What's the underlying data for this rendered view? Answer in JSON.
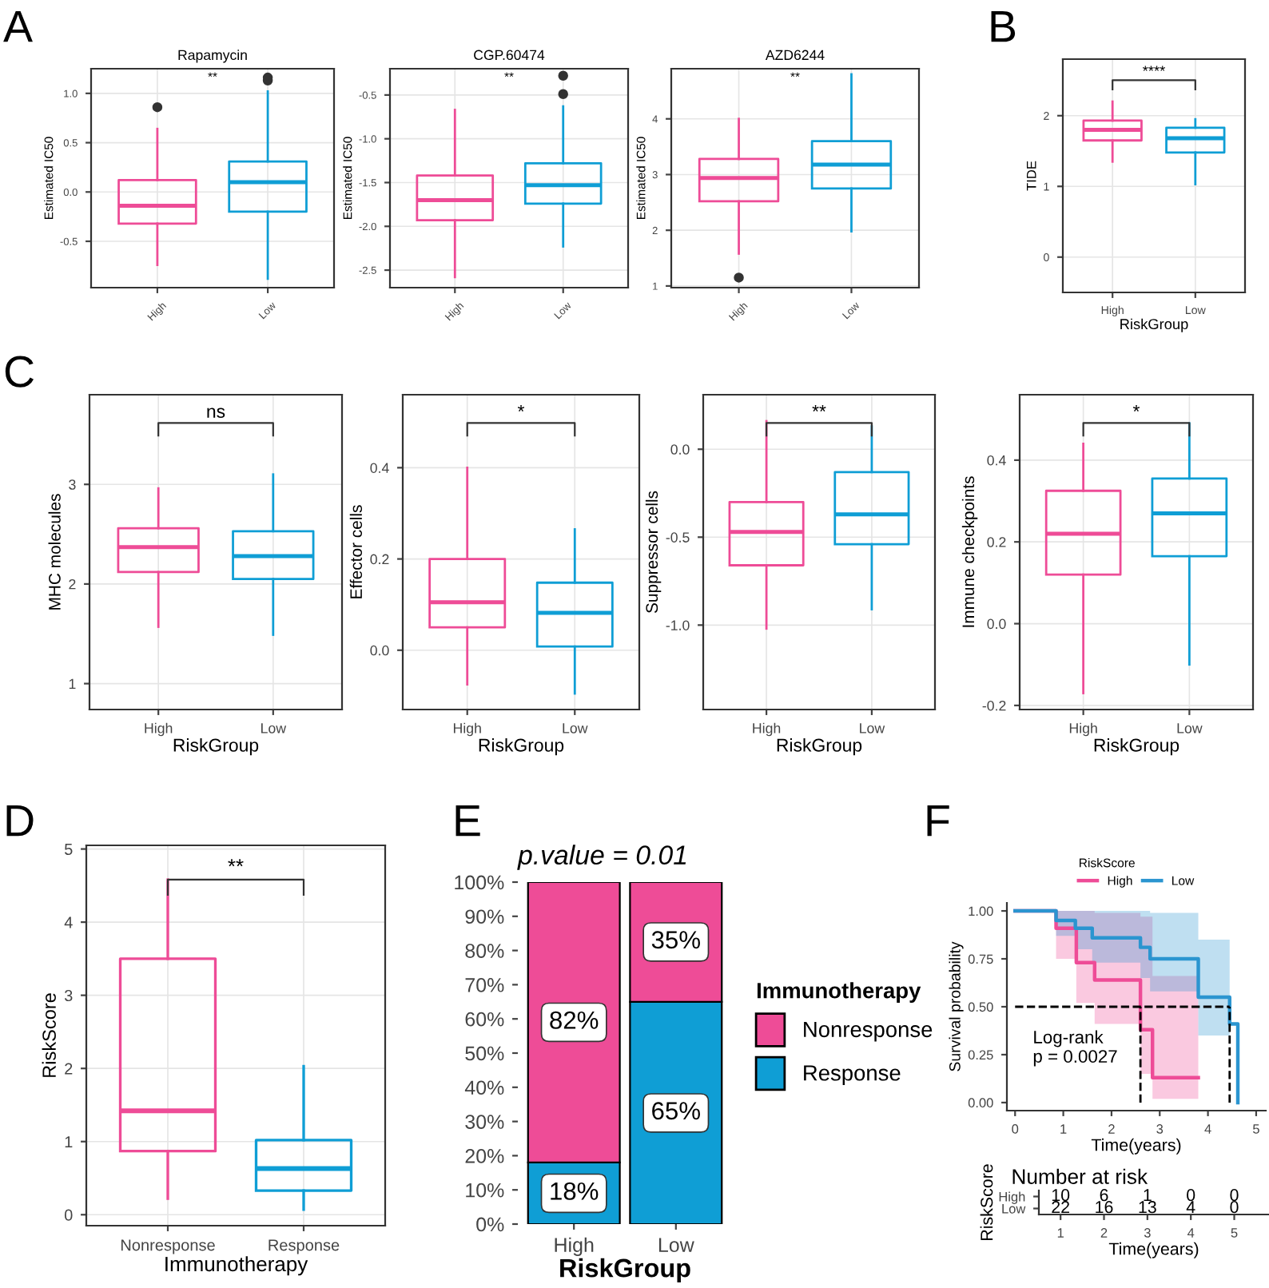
{
  "chart_data": [
    {
      "type": "box",
      "title": "Rapamycin",
      "ylabel": "Estimated IC50",
      "categories": [
        "High",
        "Low"
      ],
      "colors": [
        "#ee4c97",
        "#0f9ed5"
      ],
      "grid": true,
      "boxes": [
        {
          "low": -0.74,
          "q1": -0.32,
          "median": -0.14,
          "q3": 0.12,
          "high": 0.64,
          "outliers": [
            0.86
          ]
        },
        {
          "low": -0.88,
          "q1": -0.2,
          "median": 0.1,
          "q3": 0.31,
          "high": 1.02,
          "outliers": [
            1.13,
            1.16
          ]
        }
      ],
      "ylim": [
        -0.97,
        1.25
      ],
      "yticks": [
        -0.5,
        {
          "value": 0,
          "label": "0.0"
        },
        0.5,
        {
          "value": 1,
          "label": "1.0"
        }
      ],
      "annotations": [
        "A",
        "**"
      ]
    },
    {
      "type": "box",
      "title": "CGP.60474",
      "ylabel": "Estimated IC50",
      "categories": [
        "High",
        "Low"
      ],
      "colors": [
        "#ee4c97",
        "#0f9ed5"
      ],
      "grid": true,
      "boxes": [
        {
          "low": -2.58,
          "q1": -1.93,
          "median": -1.7,
          "q3": -1.42,
          "high": -0.67
        },
        {
          "low": -2.23,
          "q1": -1.74,
          "median": -1.53,
          "q3": -1.28,
          "high": -0.63,
          "outliers": [
            -0.49,
            -0.28
          ]
        }
      ],
      "ylim": [
        -2.7,
        -0.2
      ],
      "yticks": [
        -2.5,
        {
          "value": -2,
          "label": "-2.0"
        },
        -1.5,
        {
          "value": -1,
          "label": "-1.0"
        },
        -0.5
      ],
      "annotations": [
        "**"
      ]
    },
    {
      "type": "box",
      "title": "AZD6244",
      "ylabel": "Estimated IC50",
      "categories": [
        "High",
        "Low"
      ],
      "colors": [
        "#ee4c97",
        "#0f9ed5"
      ],
      "grid": true,
      "boxes": [
        {
          "low": 1.58,
          "q1": 2.52,
          "median": 2.94,
          "q3": 3.28,
          "high": 4.0,
          "outliers": [
            1.15
          ]
        },
        {
          "low": 1.98,
          "q1": 2.75,
          "median": 3.18,
          "q3": 3.6,
          "high": 4.8
        }
      ],
      "ylim": [
        0.97,
        4.9
      ],
      "yticks": [
        1,
        2,
        3,
        4
      ],
      "annotations": [
        "**"
      ]
    },
    {
      "type": "box",
      "ylabel": "TIDE",
      "xlabel": "RiskGroup",
      "categories": [
        "High",
        "Low"
      ],
      "colors": [
        "#ee4c97",
        "#0f9ed5"
      ],
      "grid": true,
      "boxes": [
        {
          "low": 1.35,
          "q1": 1.65,
          "median": 1.8,
          "q3": 1.93,
          "high": 2.2
        },
        {
          "low": 1.03,
          "q1": 1.48,
          "median": 1.68,
          "q3": 1.83,
          "high": 1.95
        }
      ],
      "ylim": [
        -0.5,
        2.8
      ],
      "yticks": [
        0,
        1,
        2
      ],
      "annotations": [
        "B",
        "****"
      ]
    },
    {
      "type": "box",
      "ylabel": "MHC molecules",
      "xlabel": "RiskGroup",
      "categories": [
        "High",
        "Low"
      ],
      "colors": [
        "#ee4c97",
        "#0f9ed5"
      ],
      "grid": true,
      "boxes": [
        {
          "low": 1.57,
          "q1": 2.12,
          "median": 2.37,
          "q3": 2.56,
          "high": 2.96
        },
        {
          "low": 1.49,
          "q1": 2.05,
          "median": 2.28,
          "q3": 2.53,
          "high": 3.1
        }
      ],
      "ylim": [
        0.74,
        3.9
      ],
      "yticks": [
        1,
        2,
        3
      ],
      "annotations": [
        "C",
        "ns"
      ]
    },
    {
      "type": "box",
      "ylabel": "Effector cells",
      "xlabel": "RiskGroup",
      "categories": [
        "High",
        "Low"
      ],
      "colors": [
        "#ee4c97",
        "#0f9ed5"
      ],
      "grid": true,
      "boxes": [
        {
          "low": -0.075,
          "q1": 0.05,
          "median": 0.105,
          "q3": 0.2,
          "high": 0.4
        },
        {
          "low": -0.095,
          "q1": 0.008,
          "median": 0.082,
          "q3": 0.148,
          "high": 0.265
        }
      ],
      "ylim": [
        -0.13,
        0.56
      ],
      "yticks": [
        {
          "value": 0,
          "label": "0.0"
        },
        0.2,
        0.4
      ],
      "annotations": [
        "*"
      ]
    },
    {
      "type": "box",
      "ylabel": "Suppressor cells",
      "xlabel": "RiskGroup",
      "categories": [
        "High",
        "Low"
      ],
      "colors": [
        "#ee4c97",
        "#0f9ed5"
      ],
      "grid": true,
      "boxes": [
        {
          "low": -1.02,
          "q1": -0.66,
          "median": -0.47,
          "q3": -0.3,
          "high": 0.16
        },
        {
          "low": -0.91,
          "q1": -0.54,
          "median": -0.37,
          "q3": -0.13,
          "high": 0.13
        }
      ],
      "ylim": [
        -1.48,
        0.31
      ],
      "yticks": [
        {
          "value": -1,
          "label": "-1.0"
        },
        -0.5,
        {
          "value": 0,
          "label": "0.0"
        }
      ],
      "annotations": [
        "**"
      ]
    },
    {
      "type": "box",
      "ylabel": "Immune checkpoints",
      "xlabel": "RiskGroup",
      "categories": [
        "High",
        "Low"
      ],
      "colors": [
        "#ee4c97",
        "#0f9ed5"
      ],
      "grid": true,
      "boxes": [
        {
          "low": -0.17,
          "q1": 0.12,
          "median": 0.22,
          "q3": 0.325,
          "high": 0.44
        },
        {
          "low": -0.1,
          "q1": 0.165,
          "median": 0.27,
          "q3": 0.355,
          "high": 0.49
        }
      ],
      "ylim": [
        -0.21,
        0.56
      ],
      "yticks": [
        -0.2,
        {
          "value": 0,
          "label": "0.0"
        },
        0.2,
        0.4
      ],
      "annotations": [
        "*"
      ]
    },
    {
      "type": "box",
      "ylabel": "RiskScore",
      "xlabel": "Immunotherapy",
      "categories": [
        "Nonresponse",
        "Response"
      ],
      "colors": [
        "#ee4c97",
        "#0f9ed5"
      ],
      "grid": true,
      "boxes": [
        {
          "low": 0.22,
          "q1": 0.87,
          "median": 1.42,
          "q3": 3.5,
          "high": 4.58
        },
        {
          "low": 0.07,
          "q1": 0.33,
          "median": 0.63,
          "q3": 1.02,
          "high": 2.03
        }
      ],
      "ylim": [
        -0.15,
        5.05
      ],
      "yticks": [
        0,
        1,
        2,
        3,
        4,
        5
      ],
      "annotations": [
        "D",
        "**"
      ]
    },
    {
      "type": "bar",
      "stacked": true,
      "title": "p.value = 0.01",
      "xlabel": "RiskGroup",
      "legend_title": "Immunotherapy",
      "legend": "right",
      "categories": [
        "High",
        "Low"
      ],
      "series": [
        {
          "name": "Response",
          "color": "#0f9ed5",
          "values": [
            18,
            65
          ],
          "value_labels": [
            "18%",
            "65%"
          ]
        },
        {
          "name": "Nonresponse",
          "color": "#ee4c97",
          "values": [
            82,
            35
          ],
          "value_labels": [
            "82%",
            "35%"
          ]
        }
      ],
      "ylim": [
        0,
        100
      ],
      "yticks": [
        {
          "value": 0,
          "label": "0%"
        },
        {
          "value": 10,
          "label": "10%"
        },
        {
          "value": 20,
          "label": "20%"
        },
        {
          "value": 30,
          "label": "30%"
        },
        {
          "value": 40,
          "label": "40%"
        },
        {
          "value": 50,
          "label": "50%"
        },
        {
          "value": 60,
          "label": "60%"
        },
        {
          "value": 70,
          "label": "70%"
        },
        {
          "value": 80,
          "label": "80%"
        },
        {
          "value": 90,
          "label": "90%"
        },
        {
          "value": 100,
          "label": "100%"
        }
      ],
      "annotations": [
        "E"
      ]
    },
    {
      "type": "step",
      "xlabel": "Time(years)",
      "ylabel": "Survival probability",
      "legend_title": "RiskScore",
      "legend": "top",
      "series": [
        {
          "name": "High",
          "color": "#ee4c97",
          "x": [
            0,
            0.85,
            1.27,
            1.65,
            2.6,
            2.85,
            3.8
          ],
          "values": [
            1,
            0.91,
            0.73,
            0.64,
            0.38,
            0.13,
            0.13
          ],
          "lower": [
            1,
            0.75,
            0.52,
            0.41,
            0.15,
            0.02,
            0.02
          ],
          "upper": [
            1,
            1,
            1,
            0.99,
            0.97,
            0.66,
            0.66
          ]
        },
        {
          "name": "Low",
          "color": "#2b95d0",
          "x": [
            0,
            0.85,
            1.25,
            1.6,
            2.6,
            2.8,
            3.8,
            4.45,
            4.62
          ],
          "values": [
            1,
            0.95,
            0.91,
            0.86,
            0.81,
            0.75,
            0.55,
            0.41,
            0
          ],
          "lower": [
            1,
            0.87,
            0.8,
            0.73,
            0.65,
            0.58,
            0.35,
            0.2,
            null
          ],
          "upper": [
            1,
            1,
            1,
            1,
            1,
            0.99,
            0.85,
            0.84,
            null
          ]
        }
      ],
      "ref_lines": [
        {
          "axis": "y",
          "value": 0.5,
          "line_style": "dashed"
        },
        {
          "axis": "x",
          "value": 2.6,
          "line_style": "dashed"
        },
        {
          "axis": "x",
          "value": 4.45,
          "line_style": "dashed"
        }
      ],
      "xlim": [
        -0.17,
        5.2
      ],
      "xticks": [
        0,
        1,
        2,
        3,
        4,
        5
      ],
      "ylim": [
        -0.042,
        1.042
      ],
      "yticks": [
        {
          "value": 0,
          "label": "0.00"
        },
        {
          "value": 0.25,
          "label": "0.25"
        },
        {
          "value": 0.5,
          "label": "0.50"
        },
        {
          "value": 0.75,
          "label": "0.75"
        },
        {
          "value": 1,
          "label": "1.00"
        }
      ],
      "annotations": [
        "F",
        "Log-rank\np = 0.0027"
      ]
    },
    {
      "type": "heatmap",
      "title": "Number at risk",
      "xlabel": "Time(years)",
      "ylabel": "RiskScore",
      "categories": [
        "1",
        "2",
        "3",
        "4",
        "5"
      ],
      "y_categories": [
        "High",
        "Low"
      ],
      "cells": [
        [
          10,
          6,
          1,
          0,
          0
        ],
        [
          22,
          16,
          13,
          4,
          0
        ]
      ],
      "data_labels": true
    }
  ]
}
